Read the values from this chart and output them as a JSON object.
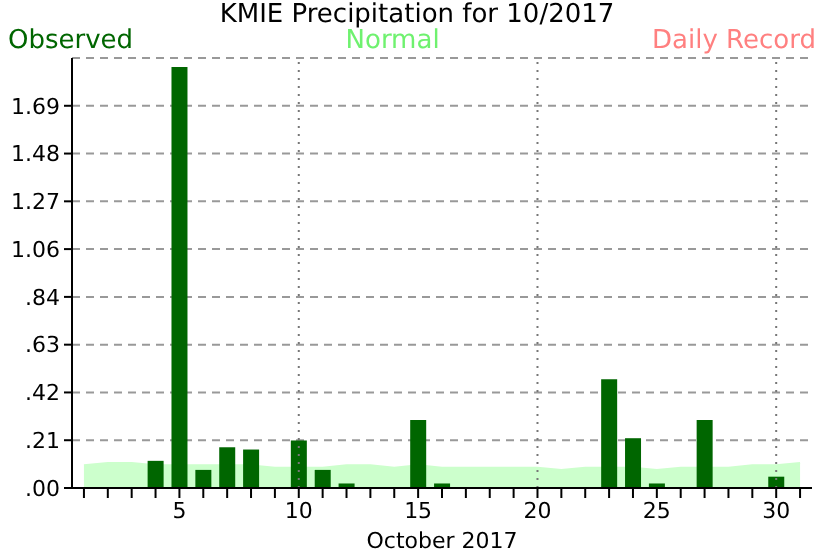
{
  "chart_data": {
    "type": "bar",
    "title": "KMIE Precipitation for 10/2017",
    "xlabel": "October 2017",
    "x": [
      1,
      2,
      3,
      4,
      5,
      6,
      7,
      8,
      9,
      10,
      11,
      12,
      13,
      14,
      15,
      16,
      17,
      18,
      19,
      20,
      21,
      22,
      23,
      24,
      25,
      26,
      27,
      28,
      29,
      30,
      31
    ],
    "series": [
      {
        "name": "Normal",
        "type": "area",
        "color": "#ccffcc",
        "values": [
          0.1,
          0.11,
          0.11,
          0.1,
          0.1,
          0.1,
          0.1,
          0.1,
          0.09,
          0.09,
          0.09,
          0.1,
          0.1,
          0.09,
          0.1,
          0.09,
          0.09,
          0.09,
          0.09,
          0.09,
          0.08,
          0.09,
          0.09,
          0.09,
          0.08,
          0.09,
          0.09,
          0.09,
          0.1,
          0.1,
          0.11
        ]
      },
      {
        "name": "Observed",
        "color": "#006600",
        "values": [
          0,
          0,
          0,
          0.12,
          1.86,
          0.08,
          0.18,
          0.17,
          0,
          0.21,
          0.08,
          0.02,
          0,
          0,
          0.3,
          0.02,
          0,
          0,
          0,
          0,
          0,
          0,
          0.48,
          0.22,
          0.02,
          0,
          0.3,
          0,
          0,
          0.05,
          0
        ]
      },
      {
        "name": "Daily Record",
        "type": "line",
        "color": "#ff8080",
        "values": [
          null,
          null,
          null,
          null,
          null,
          null,
          null,
          null,
          null,
          null,
          null,
          null,
          null,
          null,
          null,
          null,
          null,
          null,
          null,
          null,
          null,
          null,
          null,
          null,
          null,
          null,
          null,
          null,
          null,
          null,
          null
        ]
      }
    ],
    "xlim": [
      0.5,
      31.5
    ],
    "xticks": [
      {
        "value": 1,
        "label": null
      },
      {
        "value": 2,
        "label": null
      },
      {
        "value": 3,
        "label": null
      },
      {
        "value": 4,
        "label": null
      },
      5,
      {
        "value": 6,
        "label": null
      },
      {
        "value": 7,
        "label": null
      },
      {
        "value": 8,
        "label": null
      },
      {
        "value": 9,
        "label": null
      },
      10,
      {
        "value": 11,
        "label": null
      },
      {
        "value": 12,
        "label": null
      },
      {
        "value": 13,
        "label": null
      },
      {
        "value": 14,
        "label": null
      },
      15,
      {
        "value": 16,
        "label": null
      },
      {
        "value": 17,
        "label": null
      },
      {
        "value": 18,
        "label": null
      },
      {
        "value": 19,
        "label": null
      },
      20,
      {
        "value": 21,
        "label": null
      },
      {
        "value": 22,
        "label": null
      },
      {
        "value": 23,
        "label": null
      },
      {
        "value": 24,
        "label": null
      },
      25,
      {
        "value": 26,
        "label": null
      },
      {
        "value": 27,
        "label": null
      },
      {
        "value": 28,
        "label": null
      },
      {
        "value": 29,
        "label": null
      },
      30,
      {
        "value": 31,
        "label": null
      }
    ],
    "ylim": [
      0,
      1.9
    ],
    "yticks": [
      {
        "value": 0,
        "label": ".00"
      },
      {
        "value": 0.2111,
        "label": ".21"
      },
      {
        "value": 0.4222,
        "label": ".42"
      },
      {
        "value": 0.6333,
        "label": ".63"
      },
      {
        "value": 0.8444,
        "label": ".84"
      },
      {
        "value": 1.0556,
        "label": "1.06"
      },
      {
        "value": 1.2667,
        "label": "1.27"
      },
      {
        "value": 1.4778,
        "label": "1.48"
      },
      {
        "value": 1.6889,
        "label": "1.69"
      }
    ],
    "grid": "y",
    "ref_lines": [
      {
        "axis": "x",
        "value": 10,
        "line_style": "dotted"
      },
      {
        "axis": "x",
        "value": 20,
        "line_style": "dotted"
      },
      {
        "axis": "x",
        "value": 30,
        "line_style": "dotted"
      }
    ],
    "legend": "top"
  }
}
